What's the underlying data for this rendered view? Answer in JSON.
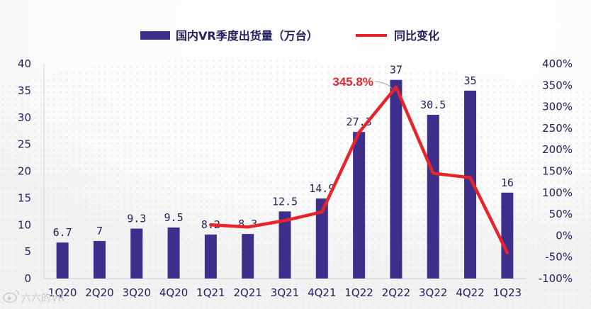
{
  "chart_data": {
    "type": "bar",
    "categories": [
      "1Q20",
      "2Q20",
      "3Q20",
      "4Q20",
      "1Q21",
      "2Q21",
      "3Q21",
      "4Q21",
      "1Q22",
      "2Q22",
      "3Q22",
      "4Q22",
      "1Q23"
    ],
    "series": [
      {
        "name": "国内VR季度出货量（万台）",
        "type": "bar",
        "axis": "left",
        "values": [
          6.7,
          7,
          9.3,
          9.5,
          8.2,
          8.3,
          12.5,
          14.9,
          27.3,
          37,
          30.5,
          35,
          16
        ],
        "labels": [
          "6.7",
          "7",
          "9.3",
          "9.5",
          "8.2",
          "8.3",
          "12.5",
          "14.9",
          "27.3",
          "37",
          "30.5",
          "35",
          "16"
        ]
      },
      {
        "name": "同比变化",
        "type": "line",
        "axis": "right",
        "values": [
          null,
          null,
          null,
          null,
          25,
          20,
          35,
          55,
          240,
          345.8,
          145,
          135,
          -40
        ]
      }
    ],
    "left_axis": {
      "min": 0,
      "max": 40,
      "step": 5,
      "ticks": [
        "0",
        "5",
        "10",
        "15",
        "20",
        "25",
        "30",
        "35",
        "40"
      ]
    },
    "right_axis": {
      "min": -100,
      "max": 400,
      "step": 50,
      "ticks": [
        "-100%",
        "-50%",
        "0%",
        "50%",
        "100%",
        "150%",
        "200%",
        "250%",
        "300%",
        "350%",
        "400%"
      ]
    },
    "annotation": {
      "text": "345.8%",
      "category": "2Q22",
      "value": 345.8
    },
    "legend_position": "top",
    "colors": {
      "bar": "#3f2e8c",
      "line": "#e8232a",
      "text": "#23205e",
      "annotation": "#e8232a"
    }
  },
  "watermark": {
    "text": "六六的VR",
    "icon_name": "weibo-logo-icon"
  }
}
